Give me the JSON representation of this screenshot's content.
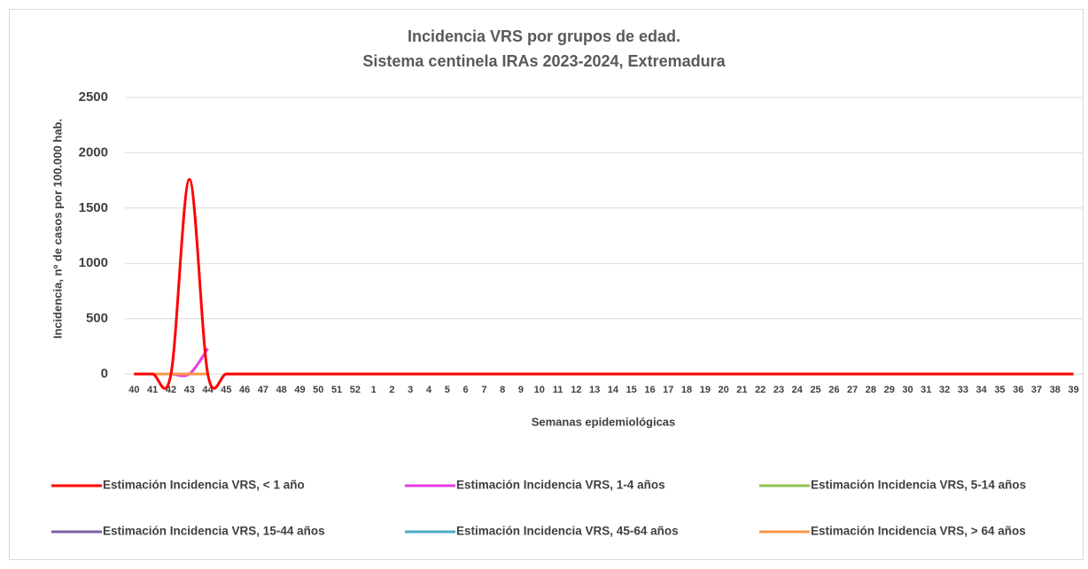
{
  "chart_data": {
    "type": "line",
    "title": "Incidencia VRS por grupos de edad.",
    "subtitle": "Sistema centinela IRAs 2023-2024, Extremadura",
    "x_label": "Semanas epidemiológicas",
    "y_label": "Incidencia, nº de casos por 100.000 hab.",
    "categories": [
      "40",
      "41",
      "42",
      "43",
      "44",
      "45",
      "46",
      "47",
      "48",
      "49",
      "50",
      "51",
      "52",
      "1",
      "2",
      "3",
      "4",
      "5",
      "6",
      "7",
      "8",
      "9",
      "10",
      "11",
      "12",
      "13",
      "14",
      "15",
      "16",
      "17",
      "18",
      "19",
      "20",
      "21",
      "22",
      "23",
      "24",
      "25",
      "26",
      "27",
      "28",
      "29",
      "30",
      "31",
      "32",
      "33",
      "34",
      "35",
      "36",
      "37",
      "38",
      "39"
    ],
    "ylim": [
      0,
      2500
    ],
    "yticks": [
      0,
      500,
      1000,
      1500,
      2000,
      2500
    ],
    "grid": true,
    "smooth": true,
    "legend": "bottom",
    "series": [
      {
        "name": "Estimación Incidencia VRS, < 1 año",
        "color": "#ff0000",
        "values": [
          0,
          0,
          0,
          1760,
          0,
          0,
          0,
          0,
          0,
          0,
          0,
          0,
          0,
          0,
          0,
          0,
          0,
          0,
          0,
          0,
          0,
          0,
          0,
          0,
          0,
          0,
          0,
          0,
          0,
          0,
          0,
          0,
          0,
          0,
          0,
          0,
          0,
          0,
          0,
          0,
          0,
          0,
          0,
          0,
          0,
          0,
          0,
          0,
          0,
          0,
          0,
          0
        ]
      },
      {
        "name": "Estimación Incidencia VRS, 1-4 años",
        "color": "#e83ee8",
        "values": [
          0,
          0,
          0,
          0,
          230,
          null,
          null,
          null,
          null,
          null,
          null,
          null,
          null,
          null,
          null,
          null,
          null,
          null,
          null,
          null,
          null,
          null,
          null,
          null,
          null,
          null,
          null,
          null,
          null,
          null,
          null,
          null,
          null,
          null,
          null,
          null,
          null,
          null,
          null,
          null,
          null,
          null,
          null,
          null,
          null,
          null,
          null,
          null,
          null,
          null,
          null,
          null
        ]
      },
      {
        "name": "Estimación Incidencia VRS, 5-14 años",
        "color": "#92c353",
        "values": [
          0,
          0,
          0,
          0,
          0,
          null,
          null,
          null,
          null,
          null,
          null,
          null,
          null,
          null,
          null,
          null,
          null,
          null,
          null,
          null,
          null,
          null,
          null,
          null,
          null,
          null,
          null,
          null,
          null,
          null,
          null,
          null,
          null,
          null,
          null,
          null,
          null,
          null,
          null,
          null,
          null,
          null,
          null,
          null,
          null,
          null,
          null,
          null,
          null,
          null,
          null,
          null
        ]
      },
      {
        "name": "Estimación Incidencia VRS, 15-44 años",
        "color": "#7b5ea7",
        "values": [
          0,
          0,
          0,
          0,
          0,
          null,
          null,
          null,
          null,
          null,
          null,
          null,
          null,
          null,
          null,
          null,
          null,
          null,
          null,
          null,
          null,
          null,
          null,
          null,
          null,
          null,
          null,
          null,
          null,
          null,
          null,
          null,
          null,
          null,
          null,
          null,
          null,
          null,
          null,
          null,
          null,
          null,
          null,
          null,
          null,
          null,
          null,
          null,
          null,
          null,
          null,
          null
        ]
      },
      {
        "name": "Estimación Incidencia VRS, 45-64 años",
        "color": "#4bacc6",
        "values": [
          0,
          0,
          0,
          0,
          0,
          null,
          null,
          null,
          null,
          null,
          null,
          null,
          null,
          null,
          null,
          null,
          null,
          null,
          null,
          null,
          null,
          null,
          null,
          null,
          null,
          null,
          null,
          null,
          null,
          null,
          null,
          null,
          null,
          null,
          null,
          null,
          null,
          null,
          null,
          null,
          null,
          null,
          null,
          null,
          null,
          null,
          null,
          null,
          null,
          null,
          null,
          null
        ]
      },
      {
        "name": "Estimación Incidencia VRS, > 64 años",
        "color": "#f79646",
        "values": [
          0,
          0,
          0,
          0,
          0,
          null,
          null,
          null,
          null,
          null,
          null,
          null,
          null,
          null,
          null,
          null,
          null,
          null,
          null,
          null,
          null,
          null,
          null,
          null,
          null,
          null,
          null,
          null,
          null,
          null,
          null,
          null,
          null,
          null,
          null,
          null,
          null,
          null,
          null,
          null,
          null,
          null,
          null,
          null,
          null,
          null,
          null,
          null,
          null,
          null,
          null,
          null
        ]
      }
    ]
  }
}
